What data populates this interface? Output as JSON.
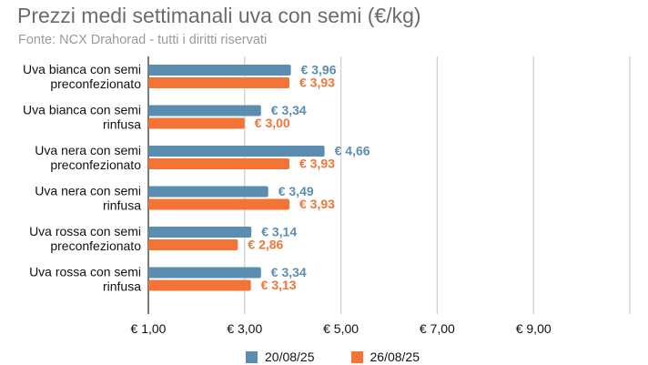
{
  "chart_data": {
    "type": "bar",
    "orientation": "horizontal",
    "title": "Prezzi medi settimanali uva con semi (€/kg)",
    "subtitle": "Fonte: NCX Drahorad - tutti i diritti riservati",
    "categories": [
      [
        "Uva bianca con semi",
        "preconfezionato"
      ],
      [
        "Uva bianca con semi",
        "rinfusa"
      ],
      [
        "Uva nera con semi",
        "preconfezionato"
      ],
      [
        "Uva nera con semi",
        "rinfusa"
      ],
      [
        "Uva rossa con semi",
        "preconfezionato"
      ],
      [
        "Uva rossa con semi",
        "rinfusa"
      ]
    ],
    "series": [
      {
        "name": "20/08/25",
        "color": "#5b8db0",
        "values": [
          3.96,
          3.34,
          4.66,
          3.49,
          3.14,
          3.34
        ],
        "labels": [
          "€ 3,96",
          "€ 3,34",
          "€ 4,66",
          "€ 3,49",
          "€ 3,14",
          "€ 3,34"
        ]
      },
      {
        "name": "26/08/25",
        "color": "#f47436",
        "values": [
          3.93,
          3.0,
          3.93,
          3.93,
          2.86,
          3.13
        ],
        "labels": [
          "€ 3,93",
          "€ 3,00",
          "€ 3,93",
          "€ 3,93",
          "€ 2,86",
          "€ 3,13"
        ]
      }
    ],
    "xlim": [
      1,
      11
    ],
    "xticks": [
      1,
      3,
      5,
      7,
      9
    ],
    "xtick_labels": [
      "€ 1,00",
      "€ 3,00",
      "€ 5,00",
      "€ 7,00",
      "€ 9,00"
    ],
    "grid": "vertical",
    "legend_position": "bottom"
  }
}
